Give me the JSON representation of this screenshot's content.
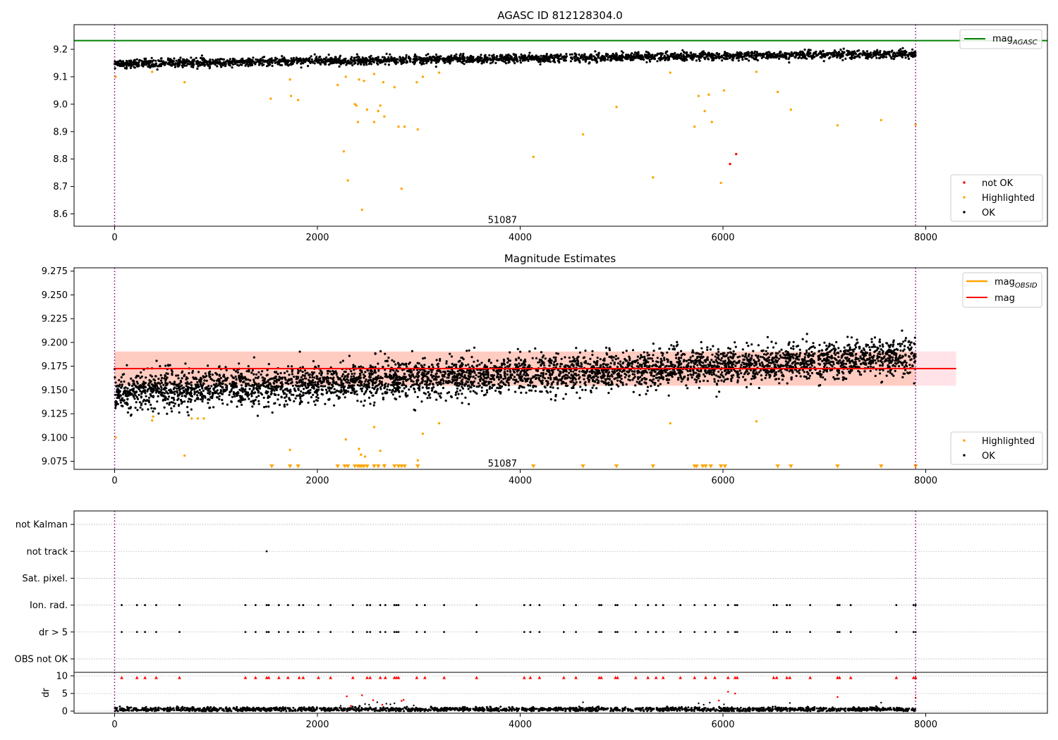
{
  "figure": {
    "title": "AGASC ID 812128304.0"
  },
  "chart_data": [
    {
      "id": "agasc",
      "type": "scatter",
      "title": "AGASC ID 812128304.0",
      "xlim": [
        -400,
        9200
      ],
      "ylim": [
        8.555,
        9.29
      ],
      "x_ticks": [
        0,
        2000,
        4000,
        6000,
        8000
      ],
      "y_ticks": [
        8.6,
        8.7,
        8.8,
        8.9,
        9.0,
        9.1,
        9.2
      ],
      "y_tick_labels": [
        "8.6",
        "8.7",
        "8.8",
        "8.9",
        "9.0",
        "9.1",
        "9.2"
      ],
      "obsid_lines": [
        0,
        7900
      ],
      "obsid_label": {
        "text": "51087",
        "x": 3950,
        "y": 8.58
      },
      "reference_line": {
        "name": "mag_AGASC",
        "y": 9.232,
        "color": "#008000"
      },
      "ok_band": {
        "x_start": 0,
        "x_end": 7900,
        "center_start": 9.148,
        "center_end": 9.185,
        "spread": 0.014,
        "count": 2600
      },
      "legend_upper": {
        "label_main": "mag",
        "label_sub": "AGASC"
      },
      "legend_lower": [
        {
          "label": "not OK",
          "color": "#ff0000"
        },
        {
          "label": "Highlighted",
          "color": "#ffa500"
        },
        {
          "label": "OK",
          "color": "#000000"
        }
      ],
      "series": [
        {
          "name": "Highlighted",
          "color": "#ffa500",
          "points": [
            [
              10,
              9.1
            ],
            [
              370,
              9.118
            ],
            [
              690,
              9.08
            ],
            [
              1540,
              9.02
            ],
            [
              1730,
              9.09
            ],
            [
              1740,
              9.03
            ],
            [
              1810,
              9.015
            ],
            [
              2200,
              9.07
            ],
            [
              2260,
              8.828
            ],
            [
              2280,
              9.1
            ],
            [
              2300,
              8.722
            ],
            [
              2370,
              9.0
            ],
            [
              2385,
              8.995
            ],
            [
              2400,
              8.935
            ],
            [
              2410,
              9.09
            ],
            [
              2440,
              8.615
            ],
            [
              2460,
              9.085
            ],
            [
              2490,
              8.98
            ],
            [
              2560,
              9.11
            ],
            [
              2560,
              8.935
            ],
            [
              2600,
              8.975
            ],
            [
              2620,
              8.995
            ],
            [
              2650,
              9.08
            ],
            [
              2660,
              8.955
            ],
            [
              2760,
              9.062
            ],
            [
              2800,
              8.918
            ],
            [
              2830,
              8.692
            ],
            [
              2860,
              8.918
            ],
            [
              2980,
              9.08
            ],
            [
              2990,
              8.908
            ],
            [
              3040,
              9.1
            ],
            [
              3200,
              9.115
            ],
            [
              4130,
              8.808
            ],
            [
              4620,
              8.89
            ],
            [
              4950,
              8.99
            ],
            [
              5310,
              8.733
            ],
            [
              5480,
              9.115
            ],
            [
              5720,
              8.918
            ],
            [
              5760,
              9.03
            ],
            [
              5820,
              8.975
            ],
            [
              5860,
              9.035
            ],
            [
              5890,
              8.935
            ],
            [
              5980,
              8.713
            ],
            [
              6010,
              9.05
            ],
            [
              6330,
              9.118
            ],
            [
              6540,
              9.045
            ],
            [
              6670,
              8.98
            ],
            [
              7130,
              8.923
            ],
            [
              7560,
              8.942
            ],
            [
              7900,
              8.925
            ]
          ]
        },
        {
          "name": "not OK",
          "color": "#ff0000",
          "points": [
            [
              6070,
              8.782
            ],
            [
              6130,
              8.818
            ]
          ]
        }
      ]
    },
    {
      "id": "estimates",
      "type": "scatter",
      "title": "Magnitude Estimates",
      "xlim": [
        -400,
        9200
      ],
      "ylim": [
        9.0665,
        9.2785
      ],
      "x_ticks": [
        0,
        2000,
        4000,
        6000,
        8000
      ],
      "y_ticks": [
        9.075,
        9.1,
        9.125,
        9.15,
        9.175,
        9.2,
        9.225,
        9.25,
        9.275
      ],
      "y_tick_labels": [
        "9.075",
        "9.100",
        "9.125",
        "9.150",
        "9.175",
        "9.200",
        "9.225",
        "9.250",
        "9.275"
      ],
      "obsid_lines": [
        0,
        7900
      ],
      "obsid_label": {
        "text": "51087",
        "x": 3950,
        "y": 9.073
      },
      "mag_line": {
        "name": "mag",
        "y": 9.1725,
        "x_start": 0,
        "x_end": 8300,
        "color": "#ff0000"
      },
      "mag_band": {
        "y_low": 9.1545,
        "y_high": 9.1905,
        "x_start": 0,
        "x_end": 8300,
        "color": "#ffc0cb"
      },
      "obsid_band": {
        "y_low": 9.1545,
        "y_high": 9.1905,
        "x_start": 0,
        "x_end": 7900,
        "color": "#ffa07a"
      },
      "ok_scatter": {
        "x_start": 0,
        "x_end": 7900,
        "center_start": 9.148,
        "center_end": 9.185,
        "spread": 0.016,
        "count": 4500
      },
      "legend_upper": [
        {
          "label_main": "mag",
          "label_sub": "OBSID",
          "color": "#ffa500"
        },
        {
          "label_main": "mag",
          "label_sub": "",
          "color": "#ff0000"
        }
      ],
      "legend_lower": [
        {
          "label": "Highlighted",
          "color": "#ffa500"
        },
        {
          "label": "OK",
          "color": "#000000"
        }
      ],
      "series": [
        {
          "name": "Highlighted",
          "color": "#ffa500",
          "points": [
            [
              10,
              9.1
            ],
            [
              370,
              9.118
            ],
            [
              380,
              9.122
            ],
            [
              690,
              9.081
            ],
            [
              760,
              9.12
            ],
            [
              820,
              9.12
            ],
            [
              880,
              9.12
            ],
            [
              1730,
              9.087
            ],
            [
              2280,
              9.098
            ],
            [
              2410,
              9.088
            ],
            [
              2430,
              9.082
            ],
            [
              2470,
              9.08
            ],
            [
              2560,
              9.111
            ],
            [
              2620,
              9.086
            ],
            [
              2660,
              9.071
            ],
            [
              2990,
              9.076
            ],
            [
              3040,
              9.104
            ],
            [
              3200,
              9.115
            ],
            [
              5480,
              9.115
            ],
            [
              6330,
              9.117
            ]
          ]
        },
        {
          "name": "Highlighted (below axis)",
          "color": "#ffa500",
          "marker": "triangle-down",
          "x_values": [
            1550,
            1730,
            1810,
            2200,
            2270,
            2300,
            2370,
            2400,
            2420,
            2440,
            2460,
            2490,
            2560,
            2600,
            2660,
            2760,
            2800,
            2830,
            2860,
            2990,
            4130,
            4620,
            4950,
            5310,
            5720,
            5740,
            5800,
            5830,
            5880,
            5980,
            6020,
            6540,
            6670,
            7130,
            7560,
            7900
          ]
        }
      ]
    },
    {
      "id": "flags",
      "type": "scatter",
      "xlim": [
        -400,
        9200
      ],
      "obsid_lines": [
        0,
        7900
      ],
      "categories": [
        "not Kalman",
        "not track",
        "Sat. pixel.",
        "Ion. rad.",
        "dr > 5",
        "OBS not OK"
      ],
      "flag_points": {
        "not track": [
          1500
        ],
        "Ion. rad.": [
          70,
          220,
          300,
          410,
          640,
          1290,
          1390,
          1500,
          1520,
          1620,
          1710,
          1820,
          1860,
          2010,
          2130,
          2350,
          2490,
          2520,
          2620,
          2670,
          2760,
          2780,
          2800,
          2980,
          3060,
          3250,
          3570,
          4040,
          4100,
          4190,
          4430,
          4550,
          4780,
          4800,
          4940,
          4960,
          5140,
          5260,
          5340,
          5410,
          5580,
          5720,
          5830,
          5920,
          6050,
          6120,
          6140,
          6500,
          6530,
          6630,
          6660,
          6860,
          7130,
          7150,
          7260,
          7710,
          7880,
          7900
        ],
        "dr > 5": [
          70,
          220,
          300,
          410,
          640,
          1290,
          1390,
          1500,
          1520,
          1620,
          1710,
          1820,
          1860,
          2010,
          2130,
          2350,
          2490,
          2520,
          2620,
          2670,
          2760,
          2780,
          2800,
          2980,
          3060,
          3250,
          3570,
          4040,
          4100,
          4190,
          4430,
          4550,
          4780,
          4800,
          4940,
          4960,
          5140,
          5260,
          5340,
          5410,
          5580,
          5720,
          5830,
          5920,
          6050,
          6120,
          6140,
          6500,
          6530,
          6630,
          6660,
          6860,
          7130,
          7150,
          7260,
          7710,
          7880,
          7900
        ]
      },
      "grid": true
    },
    {
      "id": "dr",
      "type": "scatter",
      "xlim": [
        -400,
        9200
      ],
      "ylim": [
        -0.6,
        11.0
      ],
      "x_ticks": [
        0,
        2000,
        4000,
        6000,
        8000
      ],
      "y_ticks": [
        0,
        5,
        10
      ],
      "y_tick_labels": [
        "0",
        "5",
        "10"
      ],
      "ylabel": "dr",
      "obsid_lines": [
        0,
        7900
      ],
      "grid": true,
      "ok_scatter": {
        "x_start": 0,
        "x_end": 7900,
        "center": 0.5,
        "spread": 0.3,
        "count": 1800
      },
      "capped_value": 9.5,
      "capped_x": [
        70,
        220,
        300,
        410,
        640,
        1290,
        1390,
        1500,
        1520,
        1620,
        1710,
        1820,
        1860,
        2010,
        2130,
        2350,
        2490,
        2520,
        2620,
        2670,
        2760,
        2780,
        2800,
        2980,
        3060,
        3250,
        3570,
        4040,
        4100,
        4190,
        4430,
        4550,
        4780,
        4800,
        4940,
        4960,
        5140,
        5260,
        5340,
        5410,
        5580,
        5720,
        5830,
        5920,
        6050,
        6120,
        6140,
        6500,
        6530,
        6630,
        6660,
        6860,
        7130,
        7150,
        7260,
        7710,
        7880,
        7900
      ],
      "red_points": [
        [
          2290,
          4.2
        ],
        [
          2440,
          4.5
        ],
        [
          2550,
          3.1
        ],
        [
          2830,
          2.9
        ],
        [
          2850,
          3.2
        ],
        [
          5960,
          3.0
        ],
        [
          6050,
          5.5
        ],
        [
          6120,
          5.0
        ],
        [
          7130,
          4.0
        ],
        [
          7900,
          3.8
        ],
        [
          2330,
          1.5
        ],
        [
          2640,
          1.8
        ]
      ],
      "outliers": [
        [
          2230,
          1.5
        ],
        [
          2470,
          2.0
        ],
        [
          2510,
          1.8
        ],
        [
          2590,
          2.5
        ],
        [
          2680,
          2.1
        ],
        [
          2720,
          1.9
        ],
        [
          2760,
          2.2
        ],
        [
          2950,
          1.6
        ],
        [
          4620,
          2.5
        ],
        [
          5760,
          2.2
        ],
        [
          5810,
          1.8
        ],
        [
          5870,
          2.4
        ],
        [
          6010,
          1.9
        ],
        [
          6660,
          2.3
        ],
        [
          7560,
          2.4
        ]
      ]
    }
  ]
}
